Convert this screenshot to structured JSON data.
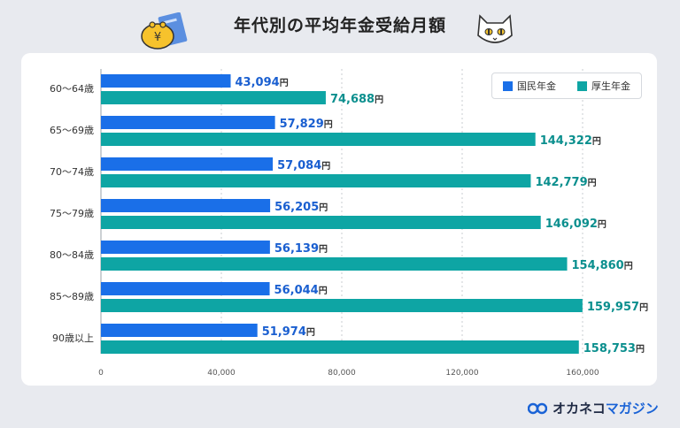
{
  "chart_data": {
    "type": "bar",
    "orientation": "horizontal",
    "title": "年代別の平均年金受給月額",
    "categories": [
      "60〜64歳",
      "65〜69歳",
      "70〜74歳",
      "75〜79歳",
      "80〜84歳",
      "85〜89歳",
      "90歳以上"
    ],
    "series": [
      {
        "name": "国民年金",
        "color": "#1a6fe8",
        "values": [
          43094,
          57829,
          57084,
          56205,
          56139,
          56044,
          51974
        ],
        "labels": [
          "43,094",
          "57,829",
          "57,084",
          "56,205",
          "56,139",
          "56,044",
          "51,974"
        ]
      },
      {
        "name": "厚生年金",
        "color": "#0ea5a4",
        "values": [
          74688,
          144322,
          142779,
          146092,
          154860,
          159957,
          158753
        ],
        "labels": [
          "74,688",
          "144,322",
          "142,779",
          "146,092",
          "154,860",
          "159,957",
          "158,753"
        ]
      }
    ],
    "unit_suffix": "円",
    "xlim": [
      0,
      180000
    ],
    "xticks": [
      0,
      40000,
      80000,
      120000,
      160000
    ],
    "xtick_labels": [
      "0",
      "40,000",
      "80,000",
      "120,000",
      "160,000"
    ],
    "grid": true,
    "legend_position": "top-right"
  },
  "logo": {
    "part1": "オカネコ",
    "part2": "マガジン"
  },
  "icons": {
    "wallet": "wallet-pension-book-icon",
    "cat": "cat-face-icon",
    "logo": "okaneco-logo-icon"
  }
}
